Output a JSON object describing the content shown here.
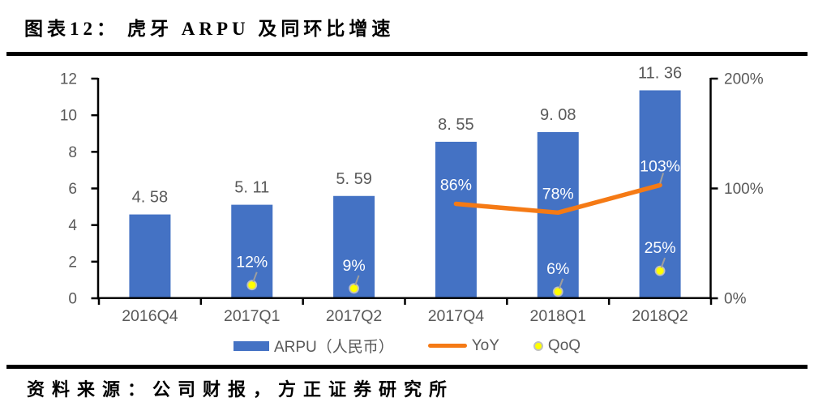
{
  "title": {
    "prefix": "图表12：",
    "text": "虎牙 ARPU 及同环比增速"
  },
  "source": "资料来源：公司财报，方正证券研究所",
  "colors": {
    "bar": "#4472C4",
    "yoy": "#F57A15",
    "qoq_fill": "#FFFF00",
    "qoq_stroke": "#BFBFBF",
    "axis": "#000000",
    "label_gray": "#595959",
    "white_label": "#FFFFFF",
    "leader": "#9E9E9E"
  },
  "chart_data": {
    "type": "combo",
    "title": "虎牙 ARPU 及同环比增速",
    "categories": [
      "2016Q4",
      "2017Q1",
      "2017Q2",
      "2017Q4",
      "2018Q1",
      "2018Q2"
    ],
    "series": [
      {
        "name": "ARPU（人民币）",
        "type": "bar",
        "axis": "left",
        "values": [
          4.58,
          5.11,
          5.59,
          8.55,
          9.08,
          11.36
        ],
        "labels": [
          "4. 58",
          "5. 11",
          "5. 59",
          "8. 55",
          "9. 08",
          "11. 36"
        ]
      },
      {
        "name": "YoY",
        "type": "line",
        "axis": "right",
        "unit": "%",
        "values": [
          null,
          null,
          null,
          86,
          78,
          103
        ],
        "labels": [
          null,
          null,
          null,
          "86%",
          "78%",
          "103%"
        ],
        "label_leaders": [
          false,
          false,
          false,
          false,
          false,
          true
        ]
      },
      {
        "name": "QoQ",
        "type": "scatter",
        "axis": "right",
        "unit": "%",
        "values": [
          null,
          12,
          9,
          null,
          6,
          25
        ],
        "labels": [
          null,
          "12%",
          "9%",
          null,
          "6%",
          "25%"
        ],
        "label_leaders": [
          false,
          true,
          true,
          false,
          true,
          true
        ]
      }
    ],
    "left_axis": {
      "min": 0,
      "max": 12,
      "ticks": [
        "0",
        "2",
        "4",
        "6",
        "8",
        "10",
        "12"
      ]
    },
    "right_axis": {
      "min": 0,
      "max": 200,
      "ticks": [
        "0%",
        "100%",
        "200%"
      ]
    },
    "grid": false,
    "legend_position": "bottom",
    "legend": [
      {
        "key": "arpu",
        "swatch": "bar",
        "label": "ARPU（人民币）"
      },
      {
        "key": "yoy",
        "swatch": "line",
        "label": "YoY"
      },
      {
        "key": "qoq",
        "swatch": "dot",
        "label": "QoQ"
      }
    ]
  }
}
